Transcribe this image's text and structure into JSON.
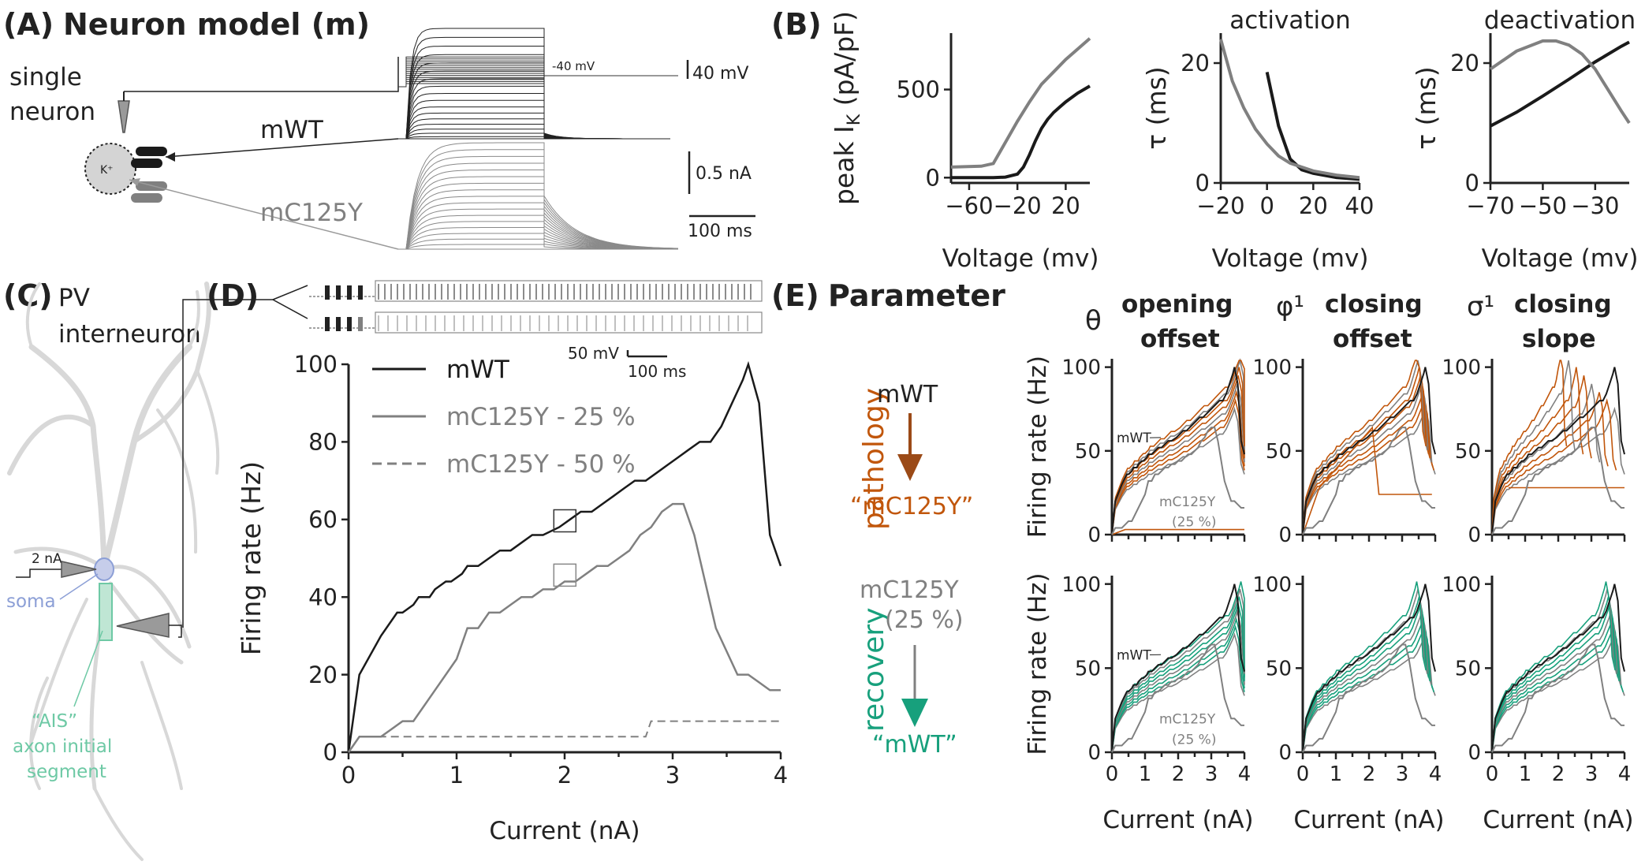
{
  "panels": {
    "A": {
      "letter": "(A)",
      "title": "Neuron model (m)",
      "single_neuron": [
        "single",
        "neuron"
      ],
      "channel_label": "K⁺",
      "mwt_label": "mWT",
      "mutant_label": "mC125Y",
      "protocol_label": "-40 mV",
      "scalebars": {
        "voltage": "40 mV",
        "current": "0.5 nA",
        "time": "100 ms"
      }
    },
    "B": {
      "letter": "(B)"
    },
    "C": {
      "letter": "(C)",
      "title": [
        "PV",
        "interneuron"
      ],
      "stim_label": "2 nA",
      "soma_label": "soma",
      "ais_label": [
        "“AIS”",
        "axon initial",
        "segment"
      ]
    },
    "D": {
      "letter": "(D)",
      "scale_voltage": "50 mV",
      "scale_time": "100 ms"
    },
    "E": {
      "letter": "(E)",
      "heading": "Parameter",
      "pathology_label": "pathology",
      "recovery_label": "recovery",
      "path_from": "mWT",
      "path_to": "“mC125Y”",
      "rec_from": [
        "mC125Y",
        "(25 %)"
      ],
      "rec_to": "“mWT”",
      "columns": [
        {
          "symbol": "θ",
          "title": [
            "opening",
            "offset"
          ]
        },
        {
          "symbol": "φ¹",
          "title": [
            "closing",
            "offset"
          ]
        },
        {
          "symbol": "σ¹",
          "title": [
            "closing",
            "slope"
          ]
        }
      ],
      "annot_wt": "mWT",
      "annot_mut": [
        "mC125Y",
        "(25 %)"
      ]
    }
  },
  "colors": {
    "black": "#1a1a1a",
    "gray": "#808080",
    "orange": "#c1560b",
    "green": "#17a07c",
    "soma": "#8c9fd6",
    "ais": "#6ec9a5",
    "neuron": "#d8d8d8"
  },
  "chart_data": [
    {
      "id": "B1",
      "type": "line",
      "xlabel": "Voltage (mv)",
      "ylabel": "peak I",
      "ylabel_sub": "K",
      "ylabel_unit": " (pA/pF)",
      "xlim": [
        -75,
        40
      ],
      "ylim": [
        -30,
        820
      ],
      "xticks": [
        -60,
        -20,
        20
      ],
      "yticks": [
        0,
        500
      ],
      "series": [
        {
          "name": "mWT",
          "color": "black",
          "x": [
            -75,
            -40,
            -30,
            -20,
            -15,
            -10,
            -5,
            0,
            5,
            10,
            15,
            20,
            30,
            40
          ],
          "y": [
            0,
            0,
            3,
            20,
            60,
            130,
            210,
            280,
            330,
            370,
            400,
            430,
            480,
            520
          ]
        },
        {
          "name": "mC125Y",
          "color": "gray",
          "x": [
            -75,
            -50,
            -40,
            -30,
            -20,
            -10,
            0,
            10,
            20,
            30,
            40
          ],
          "y": [
            60,
            65,
            80,
            200,
            320,
            430,
            530,
            600,
            670,
            730,
            790
          ]
        }
      ]
    },
    {
      "id": "B2",
      "type": "line",
      "title": "activation",
      "xlabel": "Voltage (mv)",
      "ylabel": "τ (ms)",
      "xlim": [
        -20,
        40
      ],
      "ylim": [
        0,
        25
      ],
      "xticks": [
        -20,
        0,
        20,
        40
      ],
      "yticks": [
        0,
        20
      ],
      "series": [
        {
          "name": "mWT",
          "color": "black",
          "x": [
            0,
            5,
            10,
            15,
            20,
            30,
            40
          ],
          "y": [
            18.5,
            9.5,
            4.0,
            2.2,
            1.6,
            0.9,
            0.6
          ]
        },
        {
          "name": "mC125Y",
          "color": "gray",
          "x": [
            -20,
            -15,
            -10,
            -5,
            0,
            5,
            10,
            20,
            30,
            40
          ],
          "y": [
            24,
            17,
            12.5,
            9,
            6.5,
            4.5,
            3.3,
            2.0,
            1.3,
            0.9
          ]
        }
      ]
    },
    {
      "id": "B3",
      "type": "line",
      "title": "deactivation",
      "xlabel": "Voltage (mv)",
      "ylabel": "τ (ms)",
      "xlim": [
        -70,
        -17
      ],
      "ylim": [
        0,
        25
      ],
      "xticks": [
        -70,
        -50,
        -30
      ],
      "yticks": [
        0,
        20
      ],
      "series": [
        {
          "name": "mWT",
          "color": "black",
          "x": [
            -70,
            -60,
            -50,
            -40,
            -30,
            -20,
            -17
          ],
          "y": [
            9.5,
            11.8,
            14.5,
            17.3,
            20.2,
            22.8,
            23.5
          ]
        },
        {
          "name": "mC125Y",
          "color": "gray",
          "x": [
            -70,
            -60,
            -50,
            -45,
            -40,
            -35,
            -30,
            -25,
            -20,
            -17
          ],
          "y": [
            19,
            22,
            23.7,
            23.7,
            23,
            21.5,
            19,
            15.5,
            12,
            10
          ]
        }
      ]
    },
    {
      "id": "D",
      "type": "line",
      "xlabel": "Current (nA)",
      "ylabel": "Firing rate (Hz)",
      "xlim": [
        0,
        4
      ],
      "ylim": [
        0,
        100
      ],
      "xticks": [
        0,
        1,
        2,
        3,
        4
      ],
      "yticks": [
        0,
        20,
        40,
        60,
        80,
        100
      ],
      "legend": [
        "mWT",
        "mC125Y - 25 %",
        "mC125Y - 50 %"
      ],
      "series": [
        {
          "name": "mWT",
          "color": "black",
          "dash": false,
          "x": [
            0,
            0.1,
            0.3,
            0.45,
            0.5,
            0.6,
            0.65,
            0.75,
            0.8,
            0.9,
            0.95,
            1.05,
            1.1,
            1.2,
            1.3,
            1.4,
            1.5,
            1.6,
            1.7,
            1.8,
            1.95,
            2.05,
            2.15,
            2.25,
            2.35,
            2.45,
            2.55,
            2.65,
            2.75,
            2.85,
            2.95,
            3.05,
            3.15,
            3.25,
            3.35,
            3.45,
            3.55,
            3.65,
            3.7,
            3.8,
            3.9,
            4.0
          ],
          "y": [
            0,
            20,
            30,
            36,
            36,
            38,
            40,
            40,
            42,
            44,
            44,
            46,
            48,
            48,
            50,
            52,
            52,
            54,
            56,
            56,
            58,
            60,
            62,
            62,
            64,
            66,
            68,
            70,
            70,
            72,
            74,
            76,
            78,
            80,
            80,
            84,
            90,
            96,
            100,
            90,
            56,
            48
          ]
        },
        {
          "name": "mC125Y - 25 %",
          "color": "gray",
          "dash": false,
          "x": [
            0,
            0.1,
            0.3,
            0.4,
            0.5,
            0.6,
            0.7,
            0.8,
            0.9,
            1.0,
            1.1,
            1.2,
            1.3,
            1.4,
            1.5,
            1.6,
            1.7,
            1.8,
            1.9,
            2.0,
            2.1,
            2.2,
            2.3,
            2.4,
            2.5,
            2.6,
            2.7,
            2.8,
            2.9,
            3.0,
            3.1,
            3.2,
            3.3,
            3.4,
            3.5,
            3.6,
            3.7,
            3.8,
            3.9,
            4.0
          ],
          "y": [
            0,
            4,
            4,
            6,
            8,
            8,
            12,
            16,
            20,
            24,
            32,
            32,
            36,
            36,
            38,
            40,
            40,
            42,
            42,
            44,
            44,
            46,
            48,
            48,
            50,
            52,
            56,
            58,
            62,
            64,
            64,
            56,
            44,
            32,
            26,
            20,
            20,
            18,
            16,
            16
          ]
        },
        {
          "name": "mC125Y - 50 %",
          "color": "gray",
          "dash": true,
          "x": [
            0,
            0.1,
            0.3,
            0.6,
            1.0,
            1.5,
            2.0,
            2.4,
            2.75,
            2.8,
            3.0,
            3.5,
            4.0
          ],
          "y": [
            0,
            4,
            4,
            4,
            4,
            4,
            4,
            4,
            4,
            8,
            8,
            8,
            8
          ]
        }
      ]
    },
    {
      "id": "E-grid",
      "type": "line",
      "xlabel": "Current (nA)",
      "ylabel": "Firing rate (Hz)",
      "xlim": [
        0,
        4
      ],
      "ylim": [
        0,
        105
      ],
      "xticks": [
        0,
        1,
        2,
        3,
        4
      ],
      "yticks": [
        0,
        50,
        100
      ],
      "rows": [
        "pathology",
        "recovery"
      ],
      "columns": [
        "θ opening offset",
        "φ¹ closing offset",
        "σ¹ closing slope"
      ]
    }
  ]
}
